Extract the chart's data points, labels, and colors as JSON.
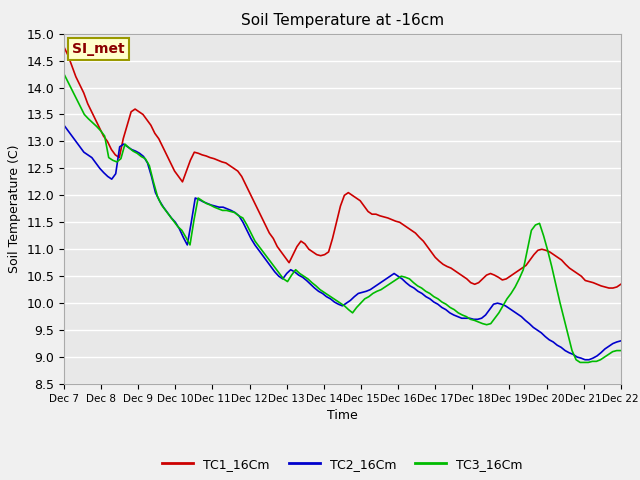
{
  "title": "Soil Temperature at -16cm",
  "xlabel": "Time",
  "ylabel": "Soil Temperature (C)",
  "ylim": [
    8.5,
    15.0
  ],
  "yticks": [
    8.5,
    9.0,
    9.5,
    10.0,
    10.5,
    11.0,
    11.5,
    12.0,
    12.5,
    13.0,
    13.5,
    14.0,
    14.5,
    15.0
  ],
  "xtick_labels": [
    "Dec 7",
    "Dec 8",
    "Dec 9",
    "Dec 10",
    "Dec 11",
    "Dec 12",
    "Dec 13",
    "Dec 14",
    "Dec 15",
    "Dec 16",
    "Dec 17",
    "Dec 18",
    "Dec 19",
    "Dec 20",
    "Dec 21",
    "Dec 22"
  ],
  "bg_color": "#e8e8e8",
  "grid_color": "#ffffff",
  "line_colors": [
    "#cc0000",
    "#0000cc",
    "#00bb00"
  ],
  "line_labels": [
    "TC1_16Cm",
    "TC2_16Cm",
    "TC3_16Cm"
  ],
  "line_width": 1.2,
  "annotation_text": "SI_met",
  "annotation_bg": "#ffffcc",
  "annotation_border": "#999900",
  "tc1": [
    14.75,
    14.6,
    14.4,
    14.2,
    14.05,
    13.9,
    13.7,
    13.55,
    13.4,
    13.25,
    13.1,
    13.0,
    12.85,
    12.75,
    12.7,
    13.05,
    13.3,
    13.55,
    13.6,
    13.55,
    13.5,
    13.4,
    13.3,
    13.15,
    13.05,
    12.9,
    12.75,
    12.6,
    12.45,
    12.35,
    12.25,
    12.45,
    12.65,
    12.8,
    12.78,
    12.75,
    12.73,
    12.7,
    12.68,
    12.65,
    12.62,
    12.6,
    12.55,
    12.5,
    12.45,
    12.35,
    12.2,
    12.05,
    11.9,
    11.75,
    11.6,
    11.45,
    11.3,
    11.2,
    11.05,
    10.95,
    10.85,
    10.75,
    10.9,
    11.05,
    11.15,
    11.1,
    11.0,
    10.95,
    10.9,
    10.88,
    10.9,
    10.95,
    11.2,
    11.5,
    11.8,
    12.0,
    12.05,
    12.0,
    11.95,
    11.9,
    11.8,
    11.7,
    11.65,
    11.65,
    11.62,
    11.6,
    11.58,
    11.55,
    11.52,
    11.5,
    11.45,
    11.4,
    11.35,
    11.3,
    11.22,
    11.15,
    11.05,
    10.95,
    10.85,
    10.78,
    10.72,
    10.68,
    10.65,
    10.6,
    10.55,
    10.5,
    10.45,
    10.38,
    10.35,
    10.38,
    10.45,
    10.52,
    10.55,
    10.52,
    10.48,
    10.43,
    10.45,
    10.5,
    10.55,
    10.6,
    10.65,
    10.7,
    10.8,
    10.9,
    10.98,
    11.0,
    10.98,
    10.95,
    10.9,
    10.85,
    10.8,
    10.72,
    10.65,
    10.6,
    10.55,
    10.5,
    10.42,
    10.4,
    10.38,
    10.35,
    10.32,
    10.3,
    10.28,
    10.28,
    10.3,
    10.35
  ],
  "tc2": [
    13.3,
    13.2,
    13.1,
    13.0,
    12.9,
    12.8,
    12.75,
    12.7,
    12.6,
    12.5,
    12.42,
    12.35,
    12.3,
    12.4,
    12.9,
    12.95,
    12.9,
    12.85,
    12.82,
    12.78,
    12.72,
    12.6,
    12.35,
    12.05,
    11.9,
    11.78,
    11.68,
    11.58,
    11.5,
    11.38,
    11.22,
    11.08,
    11.5,
    11.95,
    11.92,
    11.88,
    11.85,
    11.82,
    11.8,
    11.78,
    11.78,
    11.75,
    11.72,
    11.68,
    11.62,
    11.5,
    11.35,
    11.2,
    11.08,
    10.98,
    10.88,
    10.78,
    10.68,
    10.58,
    10.5,
    10.45,
    10.55,
    10.62,
    10.58,
    10.52,
    10.48,
    10.42,
    10.35,
    10.28,
    10.22,
    10.18,
    10.12,
    10.08,
    10.02,
    9.98,
    9.95,
    10.0,
    10.05,
    10.12,
    10.18,
    10.2,
    10.22,
    10.25,
    10.3,
    10.35,
    10.4,
    10.45,
    10.5,
    10.55,
    10.5,
    10.45,
    10.38,
    10.32,
    10.28,
    10.22,
    10.18,
    10.12,
    10.08,
    10.02,
    9.98,
    9.92,
    9.88,
    9.82,
    9.78,
    9.75,
    9.72,
    9.72,
    9.72,
    9.7,
    9.7,
    9.72,
    9.78,
    9.88,
    9.98,
    10.0,
    9.98,
    9.95,
    9.9,
    9.85,
    9.8,
    9.75,
    9.68,
    9.62,
    9.55,
    9.5,
    9.45,
    9.38,
    9.32,
    9.28,
    9.22,
    9.18,
    9.12,
    9.08,
    9.05,
    9.0,
    8.98,
    8.95,
    8.95,
    8.98,
    9.02,
    9.08,
    9.15,
    9.2,
    9.25,
    9.28,
    9.3
  ],
  "tc3": [
    14.25,
    14.1,
    13.95,
    13.8,
    13.65,
    13.5,
    13.42,
    13.35,
    13.28,
    13.2,
    13.1,
    12.7,
    12.65,
    12.62,
    12.68,
    12.95,
    12.88,
    12.82,
    12.78,
    12.72,
    12.68,
    12.55,
    12.25,
    11.98,
    11.82,
    11.72,
    11.62,
    11.52,
    11.42,
    11.35,
    11.22,
    11.08,
    11.55,
    11.95,
    11.9,
    11.85,
    11.82,
    11.78,
    11.75,
    11.72,
    11.72,
    11.7,
    11.68,
    11.62,
    11.58,
    11.45,
    11.3,
    11.15,
    11.05,
    10.95,
    10.85,
    10.75,
    10.65,
    10.55,
    10.45,
    10.4,
    10.52,
    10.62,
    10.55,
    10.5,
    10.45,
    10.38,
    10.32,
    10.25,
    10.2,
    10.15,
    10.1,
    10.05,
    10.0,
    9.95,
    9.88,
    9.82,
    9.92,
    10.0,
    10.08,
    10.12,
    10.18,
    10.22,
    10.25,
    10.3,
    10.35,
    10.4,
    10.45,
    10.5,
    10.48,
    10.45,
    10.38,
    10.32,
    10.28,
    10.22,
    10.18,
    10.12,
    10.08,
    10.02,
    9.98,
    9.92,
    9.88,
    9.82,
    9.78,
    9.75,
    9.7,
    9.68,
    9.65,
    9.62,
    9.6,
    9.62,
    9.72,
    9.82,
    9.95,
    10.08,
    10.18,
    10.3,
    10.45,
    10.62,
    10.98,
    11.35,
    11.45,
    11.48,
    11.25,
    10.98,
    10.68,
    10.35,
    10.02,
    9.72,
    9.42,
    9.12,
    8.95,
    8.9,
    8.9,
    8.9,
    8.92,
    8.92,
    8.95,
    9.0,
    9.05,
    9.1,
    9.12,
    9.12
  ]
}
